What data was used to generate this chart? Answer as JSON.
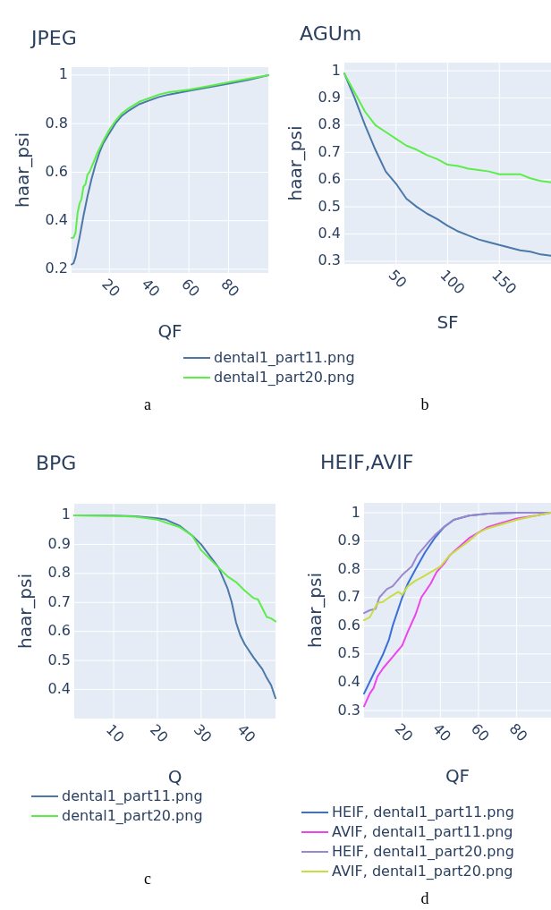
{
  "chart_data": [
    {
      "type": "line",
      "title": "JPEG",
      "xlabel": "QF",
      "ylabel": "haar_psi",
      "xlim": [
        1,
        100
      ],
      "xticks": [
        20,
        40,
        60,
        80
      ],
      "ylim": [
        0.185,
        1.033
      ],
      "yticks": [
        0.2,
        0.4,
        0.6,
        0.8,
        1
      ],
      "grid": true,
      "legend": "bottom",
      "annotations": [
        "a"
      ],
      "series": [
        {
          "name": "dental1_part11.png",
          "color": "#4c78a8",
          "x": [
            1,
            2,
            3,
            5,
            7,
            9,
            11,
            13,
            15,
            17,
            20,
            23,
            26,
            30,
            35,
            40,
            45,
            50,
            60,
            70,
            80,
            90,
            100
          ],
          "values": [
            0.22,
            0.225,
            0.25,
            0.33,
            0.42,
            0.5,
            0.57,
            0.63,
            0.68,
            0.72,
            0.76,
            0.8,
            0.83,
            0.855,
            0.88,
            0.895,
            0.91,
            0.92,
            0.935,
            0.95,
            0.965,
            0.98,
            1.0
          ]
        },
        {
          "name": "dental1_part20.png",
          "color": "#5ded4a",
          "x": [
            1,
            2,
            3,
            4,
            5,
            6,
            7,
            8,
            9,
            10,
            12,
            14,
            17,
            20,
            23,
            26,
            30,
            35,
            40,
            45,
            50,
            60,
            70,
            80,
            90,
            100
          ],
          "values": [
            0.33,
            0.33,
            0.35,
            0.43,
            0.47,
            0.49,
            0.54,
            0.55,
            0.59,
            0.6,
            0.64,
            0.68,
            0.73,
            0.775,
            0.81,
            0.84,
            0.865,
            0.89,
            0.905,
            0.92,
            0.93,
            0.94,
            0.955,
            0.97,
            0.985,
            1.0
          ]
        }
      ]
    },
    {
      "type": "line",
      "title": "AGUm",
      "xlabel": "SF",
      "ylabel": "haar_psi",
      "xlim": [
        0,
        200
      ],
      "xticks": [
        50,
        100,
        150
      ],
      "ylim": [
        0.29,
        1.03
      ],
      "yticks": [
        0.3,
        0.4,
        0.5,
        0.6,
        0.7,
        0.8,
        0.9,
        1
      ],
      "grid": true,
      "annotations": [
        "b"
      ],
      "series": [
        {
          "color": "#4c78a8",
          "x": [
            0,
            10,
            20,
            30,
            40,
            50,
            60,
            70,
            80,
            90,
            100,
            110,
            120,
            130,
            140,
            150,
            160,
            170,
            180,
            190,
            200
          ],
          "values": [
            0.99,
            0.9,
            0.8,
            0.71,
            0.63,
            0.585,
            0.53,
            0.5,
            0.475,
            0.455,
            0.43,
            0.41,
            0.395,
            0.38,
            0.37,
            0.36,
            0.35,
            0.34,
            0.335,
            0.325,
            0.32
          ]
        },
        {
          "color": "#5ded4a",
          "x": [
            0,
            10,
            20,
            30,
            40,
            50,
            60,
            70,
            80,
            90,
            100,
            110,
            120,
            130,
            140,
            150,
            160,
            170,
            180,
            190,
            200
          ],
          "values": [
            0.99,
            0.92,
            0.85,
            0.8,
            0.775,
            0.75,
            0.725,
            0.71,
            0.69,
            0.675,
            0.655,
            0.65,
            0.64,
            0.635,
            0.63,
            0.62,
            0.62,
            0.62,
            0.605,
            0.595,
            0.59
          ]
        }
      ]
    },
    {
      "type": "line",
      "title": "BPG",
      "xlabel": "Q",
      "ylabel": "haar_psi",
      "xlim": [
        1,
        47
      ],
      "xticks": [
        10,
        20,
        30,
        40
      ],
      "ylim": [
        0.3,
        1.04
      ],
      "yticks": [
        0.4,
        0.5,
        0.6,
        0.7,
        0.8,
        0.9,
        1
      ],
      "grid": true,
      "legend": "bottom",
      "annotations": [
        "c"
      ],
      "series": [
        {
          "name": "dental1_part11.png",
          "color": "#4c78a8",
          "x": [
            1,
            10,
            15,
            20,
            22,
            25,
            28,
            30,
            32,
            34,
            36,
            37,
            38,
            39,
            40,
            42,
            44,
            45,
            46,
            47
          ],
          "values": [
            1,
            0.999,
            0.997,
            0.99,
            0.985,
            0.965,
            0.93,
            0.9,
            0.86,
            0.82,
            0.75,
            0.7,
            0.63,
            0.585,
            0.555,
            0.51,
            0.47,
            0.44,
            0.415,
            0.37
          ]
        },
        {
          "name": "dental1_part20.png",
          "color": "#5ded4a",
          "x": [
            1,
            10,
            15,
            20,
            25,
            28,
            30,
            32,
            34,
            36,
            38,
            40,
            42,
            43,
            44,
            45,
            46,
            47
          ],
          "values": [
            1,
            0.998,
            0.995,
            0.985,
            0.96,
            0.93,
            0.88,
            0.85,
            0.82,
            0.79,
            0.77,
            0.74,
            0.715,
            0.71,
            0.68,
            0.65,
            0.645,
            0.635
          ]
        }
      ]
    },
    {
      "type": "line",
      "title": "HEIF,AVIF",
      "xlabel": "QF",
      "ylabel": "haar_psi",
      "xlim": [
        0,
        98
      ],
      "xticks": [
        20,
        40,
        60,
        80
      ],
      "ylim": [
        0.275,
        1.035
      ],
      "yticks": [
        0.3,
        0.4,
        0.5,
        0.6,
        0.7,
        0.8,
        0.9,
        1
      ],
      "grid": true,
      "legend": "bottom",
      "annotations": [
        "d"
      ],
      "series": [
        {
          "name": "HEIF, dental1_part11.png",
          "color": "#3b6fd8",
          "x": [
            0,
            5,
            10,
            13,
            15,
            18,
            20,
            23,
            27,
            32,
            37,
            42,
            47,
            55,
            65,
            80,
            98
          ],
          "values": [
            0.36,
            0.43,
            0.5,
            0.55,
            0.6,
            0.66,
            0.7,
            0.75,
            0.8,
            0.86,
            0.91,
            0.95,
            0.975,
            0.99,
            0.997,
            1,
            1
          ]
        },
        {
          "name": "AVIF, dental1_part11.png",
          "color": "#ee44ee",
          "x": [
            0,
            3,
            5,
            7,
            10,
            15,
            20,
            23,
            27,
            30,
            35,
            38,
            42,
            45,
            50,
            55,
            60,
            65,
            70,
            80,
            90,
            98
          ],
          "values": [
            0.315,
            0.36,
            0.38,
            0.42,
            0.45,
            0.49,
            0.53,
            0.58,
            0.64,
            0.7,
            0.75,
            0.79,
            0.82,
            0.85,
            0.88,
            0.91,
            0.93,
            0.95,
            0.96,
            0.98,
            0.99,
            1
          ]
        },
        {
          "name": "HEIF, dental1_part20.png",
          "color": "#9988cc",
          "x": [
            0,
            3,
            6,
            8,
            12,
            15,
            20,
            25,
            28,
            33,
            37,
            42,
            47,
            55,
            65,
            80,
            98
          ],
          "values": [
            0.645,
            0.655,
            0.66,
            0.7,
            0.73,
            0.74,
            0.78,
            0.81,
            0.85,
            0.89,
            0.92,
            0.95,
            0.975,
            0.99,
            0.997,
            1,
            1
          ]
        },
        {
          "name": "AVIF, dental1_part20.png",
          "color": "#c8dd44",
          "x": [
            0,
            3,
            7,
            10,
            13,
            18,
            20,
            23,
            27,
            30,
            35,
            40,
            45,
            50,
            55,
            60,
            65,
            70,
            80,
            90,
            98
          ],
          "values": [
            0.62,
            0.63,
            0.68,
            0.685,
            0.7,
            0.72,
            0.71,
            0.74,
            0.76,
            0.77,
            0.79,
            0.81,
            0.85,
            0.875,
            0.9,
            0.93,
            0.945,
            0.955,
            0.975,
            0.99,
            1
          ]
        }
      ]
    }
  ]
}
